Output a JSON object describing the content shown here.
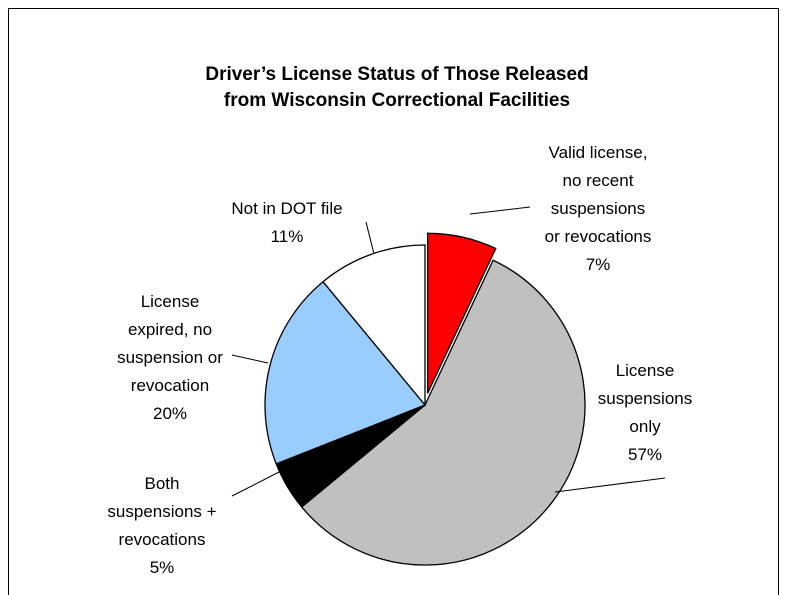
{
  "chart_data": {
    "type": "pie",
    "title": "Driver’s License Status of Those Released\nfrom Wisconsin Correctional Facilities",
    "categories": [
      "Valid license,\nno recent\nsuspensions\nor revocations",
      "License\nsuspensions\nonly",
      "Both\nsuspensions +\nrevocations",
      "License\nexpired, no\nsuspension or\nrevocation",
      "Not in DOT file"
    ],
    "values": [
      7,
      57,
      5,
      20,
      11
    ],
    "value_labels": [
      "7%",
      "57%",
      "5%",
      "20%",
      "11%"
    ],
    "colors": [
      "#ff0000",
      "#c0c0c0",
      "#000000",
      "#99ccff",
      "#ffffff"
    ],
    "exploded": [
      0
    ]
  }
}
